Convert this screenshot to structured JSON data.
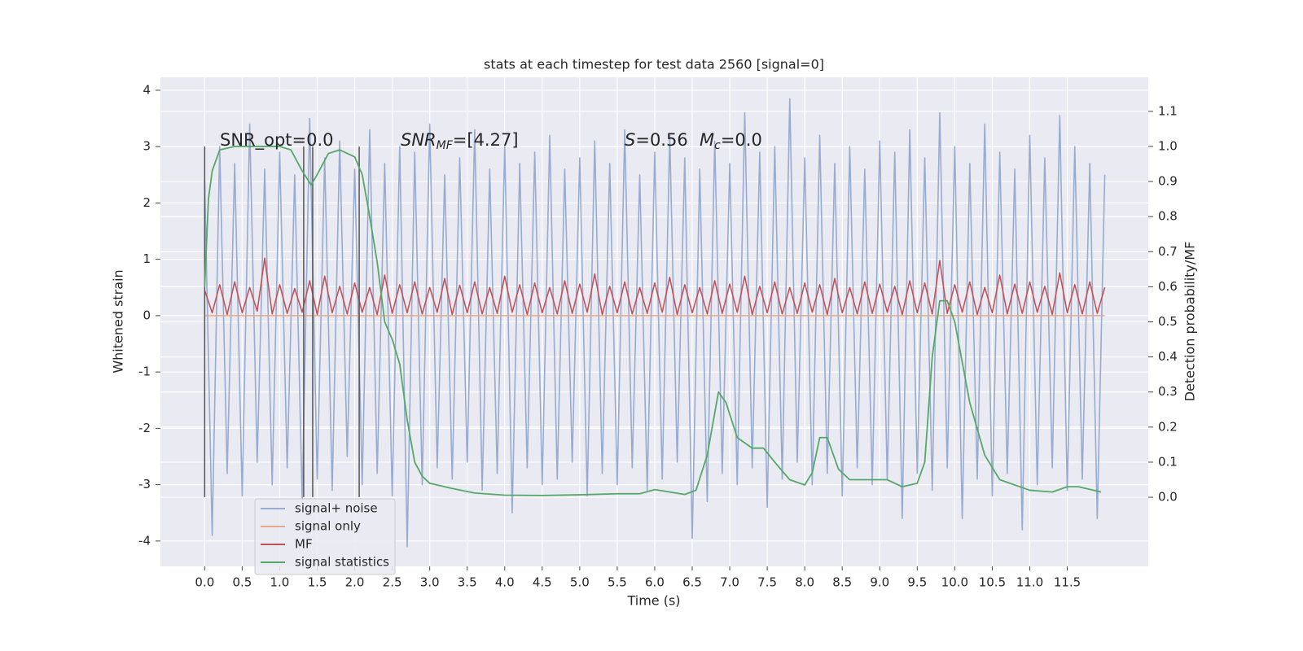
{
  "chart_data": {
    "type": "line",
    "title": "stats at each timestep for test data 2560 [signal=0]",
    "xlabel": "Time (s)",
    "ylabel": "Whitened strain",
    "y2label": "Detection probability/MF",
    "xlim": [
      -0.59,
      12.58
    ],
    "ylim": [
      -4.45,
      4.23
    ],
    "y2lim": [
      -0.197,
      1.197
    ],
    "xticks": [
      {
        "value": 0,
        "label": "0.0"
      },
      0.5,
      {
        "value": 1,
        "label": "1.0"
      },
      1.5,
      {
        "value": 2,
        "label": "2.0"
      },
      2.5,
      {
        "value": 3,
        "label": "3.0"
      },
      3.5,
      {
        "value": 4,
        "label": "4.0"
      },
      4.5,
      {
        "value": 5,
        "label": "5.0"
      },
      5.5,
      {
        "value": 6,
        "label": "6.0"
      },
      6.5,
      {
        "value": 7,
        "label": "7.0"
      },
      7.5,
      {
        "value": 8,
        "label": "8.0"
      },
      8.5,
      {
        "value": 9,
        "label": "9.0"
      },
      9.5,
      {
        "value": 10,
        "label": "10.0"
      },
      10.5,
      {
        "value": 11,
        "label": "11.0"
      },
      11.5
    ],
    "yticks": [
      -4,
      -3,
      -2,
      -1,
      0,
      1,
      2,
      3,
      4
    ],
    "y2ticks": [
      {
        "value": 0,
        "label": "0.0"
      },
      0.1,
      0.2,
      0.3,
      0.4,
      0.5,
      0.6,
      0.7,
      0.8,
      0.9,
      {
        "value": 1,
        "label": "1.0"
      },
      1.1
    ],
    "grid": true,
    "legend": "lower left",
    "x": [
      0,
      0.1,
      0.2,
      0.3,
      0.4,
      0.5,
      0.6,
      0.7,
      0.8,
      0.9,
      1,
      1.1,
      1.2,
      1.3,
      1.4,
      1.5,
      1.6,
      1.7,
      1.8,
      1.9,
      2,
      2.1,
      2.2,
      2.3,
      2.4,
      2.5,
      2.6,
      2.7,
      2.8,
      2.9,
      3,
      3.1,
      3.2,
      3.3,
      3.4,
      3.5,
      3.6,
      3.7,
      3.8,
      3.9,
      4,
      4.1,
      4.2,
      4.3,
      4.4,
      4.5,
      4.6,
      4.7,
      4.8,
      4.9,
      5,
      5.1,
      5.2,
      5.3,
      5.4,
      5.5,
      5.6,
      5.7,
      5.8,
      5.9,
      6,
      6.1,
      6.2,
      6.3,
      6.4,
      6.5,
      6.6,
      6.7,
      6.8,
      6.9,
      7,
      7.1,
      7.2,
      7.3,
      7.4,
      7.5,
      7.6,
      7.7,
      7.8,
      7.9,
      8,
      8.1,
      8.2,
      8.3,
      8.4,
      8.5,
      8.6,
      8.7,
      8.8,
      8.9,
      9,
      9.1,
      9.2,
      9.3,
      9.4,
      9.5,
      9.6,
      9.7,
      9.8,
      9.9,
      10,
      10.1,
      10.2,
      10.3,
      10.4,
      10.5,
      10.6,
      10.7,
      10.8,
      10.9,
      11,
      11.1,
      11.2,
      11.3,
      11.4,
      11.5,
      11.6,
      11.7,
      11.8,
      11.9,
      12
    ],
    "series": [
      {
        "name": "signal+ noise",
        "color": "#98abd0",
        "values": [
          2.4,
          -3.9,
          3.0,
          -2.8,
          2.7,
          -3.2,
          3.4,
          -2.6,
          2.6,
          -3.0,
          2.9,
          -2.7,
          2.5,
          -3.3,
          3.5,
          -2.9,
          2.8,
          -3.1,
          3.1,
          -2.5,
          2.6,
          -3.0,
          3.3,
          -2.8,
          2.7,
          -3.2,
          3.0,
          -4.1,
          2.9,
          -3.0,
          3.4,
          -2.7,
          2.5,
          -2.9,
          2.8,
          -2.6,
          3.3,
          -3.1,
          2.6,
          -2.8,
          3.0,
          -3.5,
          2.7,
          -2.7,
          2.9,
          -3.0,
          3.2,
          -2.9,
          2.6,
          -2.6,
          2.8,
          -3.2,
          3.1,
          -2.8,
          2.7,
          -3.0,
          3.3,
          -2.7,
          2.5,
          -3.1,
          2.9,
          -2.9,
          3.2,
          -2.6,
          2.8,
          -3.95,
          2.6,
          -3.3,
          3.1,
          -2.8,
          2.7,
          -3.0,
          3.6,
          -2.7,
          2.9,
          -3.4,
          3.0,
          -2.9,
          3.85,
          -2.6,
          2.8,
          -3.0,
          3.2,
          -2.8,
          2.7,
          -3.2,
          3.0,
          -2.7,
          2.6,
          -3.0,
          3.1,
          -2.9,
          2.9,
          -3.6,
          3.3,
          -2.8,
          2.8,
          -3.1,
          3.6,
          -2.7,
          3.0,
          -3.6,
          2.7,
          -2.9,
          3.4,
          -3.2,
          2.9,
          -2.8,
          2.6,
          -3.8,
          3.2,
          -3.0,
          2.8,
          -2.7,
          3.55,
          -3.1,
          3.0,
          -2.9,
          2.7,
          -3.6,
          2.5
        ]
      },
      {
        "name": "signal only",
        "color": "#e8a98a",
        "values": [
          0,
          0,
          0,
          0,
          0,
          0,
          0,
          0,
          0,
          0,
          0,
          0,
          0,
          0,
          0,
          0,
          0,
          0,
          0,
          0,
          0,
          0,
          0,
          0,
          0,
          0,
          0,
          0,
          0,
          0,
          0,
          0,
          0,
          0,
          0,
          0,
          0,
          0,
          0,
          0,
          0,
          0,
          0,
          0,
          0,
          0,
          0,
          0,
          0,
          0,
          0,
          0,
          0,
          0,
          0,
          0,
          0,
          0,
          0,
          0,
          0,
          0,
          0,
          0,
          0,
          0,
          0,
          0,
          0,
          0,
          0,
          0,
          0,
          0,
          0,
          0,
          0,
          0,
          0,
          0,
          0,
          0,
          0,
          0,
          0,
          0,
          0,
          0,
          0,
          0,
          0,
          0,
          0,
          0,
          0,
          0,
          0,
          0,
          0,
          0,
          0,
          0,
          0,
          0,
          0,
          0,
          0,
          0,
          0,
          0,
          0,
          0,
          0,
          0,
          0,
          0,
          0,
          0,
          0,
          0,
          0
        ]
      },
      {
        "name": "MF",
        "color": "#c44e52",
        "values": [
          0.45,
          0.05,
          0.55,
          0.02,
          0.6,
          0.05,
          0.5,
          0.08,
          1.02,
          0.03,
          0.55,
          0.04,
          0.48,
          0.06,
          0.62,
          0.02,
          0.7,
          0.05,
          0.52,
          0.03,
          0.58,
          0.06,
          0.5,
          0.02,
          0.72,
          0.04,
          0.55,
          0.05,
          0.6,
          0.03,
          0.5,
          0.06,
          0.66,
          0.02,
          0.54,
          0.05,
          0.6,
          0.03,
          0.5,
          0.04,
          0.7,
          0.06,
          0.55,
          0.02,
          0.58,
          0.05,
          0.5,
          0.03,
          0.62,
          0.04,
          0.56,
          0.06,
          0.74,
          0.02,
          0.52,
          0.05,
          0.6,
          0.03,
          0.5,
          0.04,
          0.58,
          0.06,
          0.68,
          0.02,
          0.55,
          0.05,
          0.5,
          0.03,
          0.62,
          0.04,
          0.56,
          0.06,
          0.7,
          0.02,
          0.52,
          0.05,
          0.6,
          0.03,
          0.5,
          0.04,
          0.58,
          0.06,
          0.55,
          0.02,
          0.66,
          0.05,
          0.5,
          0.03,
          0.6,
          0.04,
          0.56,
          0.06,
          0.52,
          0.02,
          0.62,
          0.05,
          0.58,
          0.03,
          0.98,
          0.04,
          0.55,
          0.06,
          0.6,
          0.02,
          0.5,
          0.05,
          0.72,
          0.03,
          0.56,
          0.04,
          0.6,
          0.06,
          0.52,
          0.02,
          0.76,
          0.05,
          0.55,
          0.03,
          0.6,
          0.04,
          0.5
        ]
      },
      {
        "name": "signal statistics",
        "color": "#55a868",
        "axis": "y2",
        "x": [
          0,
          0.05,
          0.1,
          0.2,
          0.4,
          0.8,
          1,
          1.15,
          1.3,
          1.42,
          1.5,
          1.65,
          1.8,
          2,
          2.1,
          2.2,
          2.3,
          2.4,
          2.5,
          2.6,
          2.7,
          2.8,
          2.9,
          3,
          3.3,
          3.6,
          4,
          4.5,
          5,
          5.5,
          5.8,
          6,
          6.2,
          6.4,
          6.55,
          6.7,
          6.85,
          6.95,
          7.1,
          7.3,
          7.45,
          7.6,
          7.8,
          8,
          8.1,
          8.2,
          8.3,
          8.45,
          8.6,
          8.9,
          9.1,
          9.3,
          9.5,
          9.6,
          9.7,
          9.8,
          9.9,
          10,
          10.2,
          10.4,
          10.6,
          11,
          11.3,
          11.5,
          11.65,
          11.95
        ],
        "values": [
          0.6,
          0.85,
          0.93,
          0.99,
          1.0,
          1.0,
          1.0,
          0.99,
          0.93,
          0.89,
          0.92,
          0.98,
          0.99,
          0.97,
          0.92,
          0.8,
          0.67,
          0.5,
          0.45,
          0.38,
          0.22,
          0.1,
          0.06,
          0.04,
          0.025,
          0.012,
          0.006,
          0.005,
          0.007,
          0.01,
          0.01,
          0.022,
          0.015,
          0.008,
          0.02,
          0.12,
          0.3,
          0.27,
          0.17,
          0.14,
          0.14,
          0.1,
          0.05,
          0.035,
          0.07,
          0.17,
          0.17,
          0.08,
          0.05,
          0.05,
          0.05,
          0.03,
          0.04,
          0.1,
          0.4,
          0.56,
          0.56,
          0.5,
          0.27,
          0.12,
          0.05,
          0.02,
          0.015,
          0.03,
          0.03,
          0.015
        ]
      }
    ],
    "vlines": {
      "x": [
        0,
        1.32,
        1.44,
        2.06
      ],
      "ymin": -3.22,
      "ymax": 3.0,
      "color": "#555555"
    },
    "annotations": [
      {
        "parts": [
          {
            "text": "SNR_opt=0.0"
          }
        ]
      },
      {
        "parts": [
          {
            "text": "SNR",
            "style": "italic"
          },
          {
            "text": "MF",
            "style": "italic-sub"
          },
          {
            "text": "=[4.27]"
          }
        ]
      },
      {
        "parts": [
          {
            "text": "S",
            "style": "italic"
          },
          {
            "text": "=0.56"
          }
        ]
      },
      {
        "parts": [
          {
            "text": "M",
            "style": "italic"
          },
          {
            "text": "c",
            "style": "italic-sub"
          },
          {
            "text": "=0.0"
          }
        ]
      }
    ]
  }
}
